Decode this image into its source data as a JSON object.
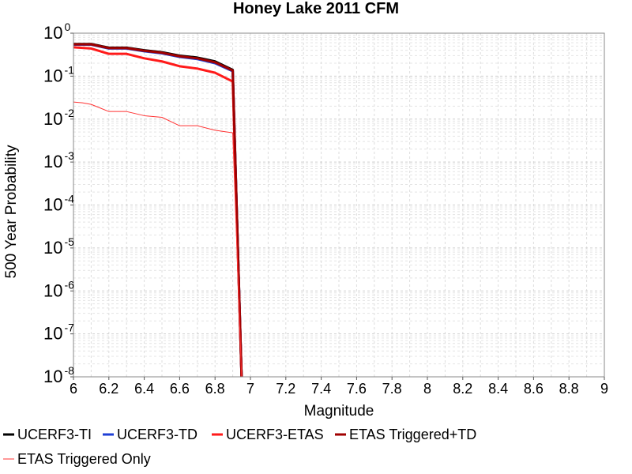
{
  "chart_data": {
    "type": "line",
    "title": "Honey Lake 2011 CFM",
    "xlabel": "Magnitude",
    "ylabel": "500 Year Probability",
    "xlim": [
      6,
      9
    ],
    "ylim": [
      1e-08,
      1
    ],
    "yscale": "log",
    "grid": true,
    "legend_placement": "bottom",
    "x_ticks": [
      "6",
      "6.2",
      "6.4",
      "6.6",
      "6.8",
      "7",
      "7.2",
      "7.4",
      "7.6",
      "7.8",
      "8",
      "8.2",
      "8.4",
      "8.6",
      "8.8",
      "9"
    ],
    "y_ticks": [
      {
        "base": "10",
        "exp": "0"
      },
      {
        "base": "10",
        "exp": "-1"
      },
      {
        "base": "10",
        "exp": "-2"
      },
      {
        "base": "10",
        "exp": "-3"
      },
      {
        "base": "10",
        "exp": "-4"
      },
      {
        "base": "10",
        "exp": "-5"
      },
      {
        "base": "10",
        "exp": "-6"
      },
      {
        "base": "10",
        "exp": "-7"
      },
      {
        "base": "10",
        "exp": "-8"
      }
    ],
    "series": [
      {
        "name": "UCERF3-TI",
        "color": "#000000",
        "width": 3,
        "x": [
          6.0,
          6.1,
          6.2,
          6.3,
          6.4,
          6.5,
          6.6,
          6.7,
          6.8,
          6.9,
          6.95
        ],
        "y": [
          0.56,
          0.56,
          0.46,
          0.46,
          0.4,
          0.36,
          0.3,
          0.27,
          0.22,
          0.14,
          1e-09
        ]
      },
      {
        "name": "UCERF3-TD",
        "color": "#1f3fd6",
        "width": 3,
        "x": [
          6.0,
          6.1,
          6.2,
          6.3,
          6.4,
          6.5,
          6.6,
          6.7,
          6.8,
          6.9,
          6.95
        ],
        "y": [
          0.54,
          0.54,
          0.44,
          0.44,
          0.38,
          0.34,
          0.28,
          0.25,
          0.2,
          0.13,
          1e-09
        ]
      },
      {
        "name": "UCERF3-ETAS",
        "color": "#ff1a1a",
        "width": 3,
        "x": [
          6.0,
          6.1,
          6.2,
          6.3,
          6.4,
          6.5,
          6.6,
          6.7,
          6.8,
          6.9,
          6.95
        ],
        "y": [
          0.47,
          0.44,
          0.33,
          0.33,
          0.26,
          0.22,
          0.17,
          0.15,
          0.12,
          0.075,
          1e-09
        ]
      },
      {
        "name": "ETAS Triggered+TD",
        "color": "#a00000",
        "width": 3,
        "x": [
          6.0,
          6.1,
          6.2,
          6.3,
          6.4,
          6.5,
          6.6,
          6.7,
          6.8,
          6.9,
          6.95
        ],
        "y": [
          0.55,
          0.55,
          0.45,
          0.45,
          0.39,
          0.35,
          0.29,
          0.26,
          0.21,
          0.135,
          1e-09
        ]
      },
      {
        "name": "ETAS Triggered Only",
        "color": "#ff3333",
        "width": 1,
        "x": [
          6.0,
          6.05,
          6.1,
          6.2,
          6.3,
          6.4,
          6.5,
          6.6,
          6.7,
          6.8,
          6.9,
          6.95
        ],
        "y": [
          0.025,
          0.024,
          0.022,
          0.015,
          0.015,
          0.012,
          0.011,
          0.007,
          0.007,
          0.0055,
          0.0048,
          1e-09
        ]
      }
    ]
  }
}
